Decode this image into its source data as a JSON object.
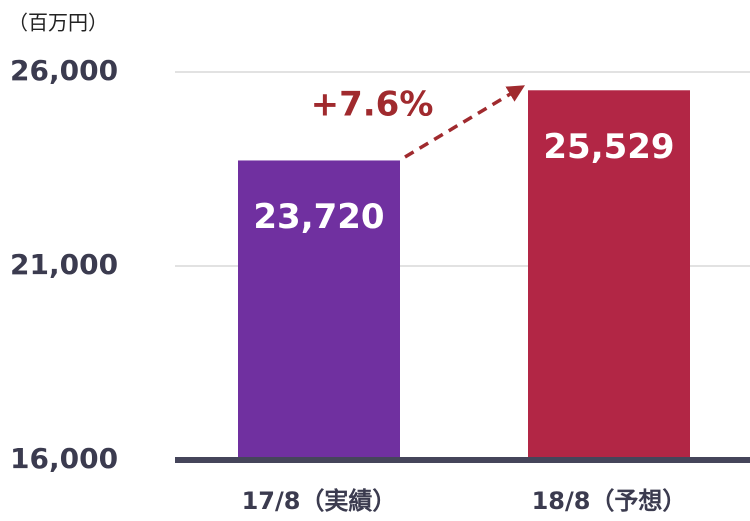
{
  "chart_data": {
    "type": "bar",
    "unit_label": "（百万円）",
    "categories": [
      "17/8（実績）",
      "18/8（予想）"
    ],
    "values": [
      23720,
      25529
    ],
    "value_labels": [
      "23,720",
      "25,529"
    ],
    "colors": [
      "#7030a0",
      "#b22645"
    ],
    "annotation": "+7.6%",
    "ylim": [
      16000,
      26000
    ],
    "yticks": [
      {
        "value": 16000,
        "label": "16,000"
      },
      {
        "value": 21000,
        "label": "21,000"
      },
      {
        "value": 26000,
        "label": "26,000"
      }
    ],
    "grid": true
  }
}
